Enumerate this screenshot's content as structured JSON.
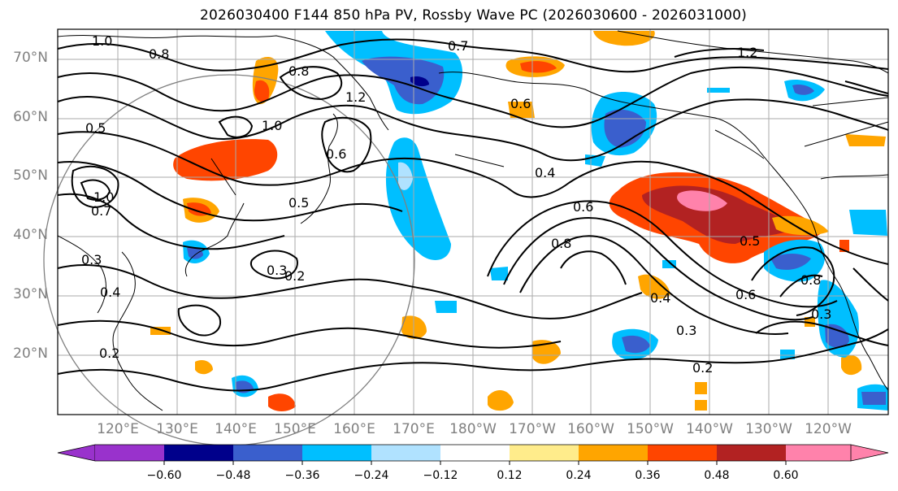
{
  "title": "2026030400 F144 850 hPa PV, Rossby Wave PC (2026030600 - 2026031000)",
  "map": {
    "lat_labels": [
      "70°N",
      "60°N",
      "50°N",
      "40°N",
      "30°N",
      "20°N"
    ],
    "lon_labels": [
      "120°E",
      "130°E",
      "140°E",
      "150°E",
      "160°E",
      "170°E",
      "180°W",
      "170°W",
      "160°W",
      "150°W",
      "140°W",
      "130°W",
      "120°W"
    ],
    "contour_labels": [
      "1.0",
      "0.8",
      "0.8",
      "0.7",
      "1.2",
      "1.0",
      "0.6",
      "0.5",
      "0.5",
      "0.6",
      "0.4",
      "0.6",
      "0.8",
      "0.5",
      "0.3",
      "0.2",
      "0.3",
      "0.4",
      "0.6",
      "0.3",
      "0.2",
      "1.2",
      "0.7",
      "1.0",
      "0.8",
      "0.3",
      "0.4",
      "0.2"
    ]
  },
  "colorbar": {
    "ticks": [
      "−0.60",
      "−0.48",
      "−0.36",
      "−0.24",
      "−0.12",
      "0.12",
      "0.24",
      "0.36",
      "0.48",
      "0.60"
    ],
    "colors": [
      "#9932cc",
      "#00008b",
      "#3a5fcd",
      "#00bfff",
      "#b0e2ff",
      "#ffffff",
      "#ffec8b",
      "#ffa500",
      "#ff4500",
      "#b22222",
      "#ff82ab"
    ]
  }
}
